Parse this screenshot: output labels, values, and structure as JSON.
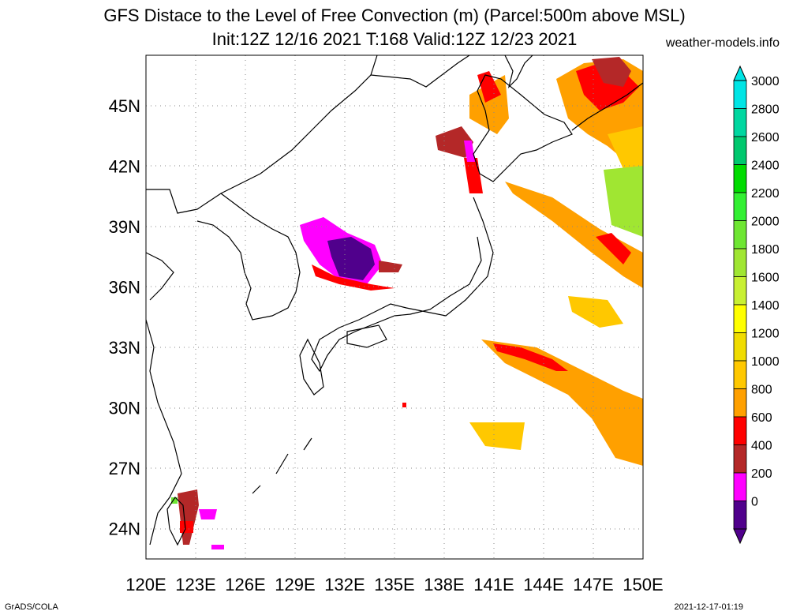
{
  "header": {
    "title_line1": "GFS Distace to the Level of Free Convection (m) (Parcel:500m above MSL)",
    "title_line2": "Init:12Z 12/16 2021 T:168 Valid:12Z 12/23 2021",
    "site": "weather-models.info"
  },
  "footer": {
    "left": "GrADS/COLA",
    "right": "2021-12-17-01:19"
  },
  "map": {
    "lon_labels": [
      "120E",
      "123E",
      "126E",
      "129E",
      "132E",
      "135E",
      "138E",
      "141E",
      "144E",
      "147E",
      "150E"
    ],
    "lat_labels": [
      "45N",
      "42N",
      "39N",
      "36N",
      "33N",
      "30N",
      "27N",
      "24N"
    ],
    "lon_range": [
      120,
      150
    ],
    "lat_range": [
      22.5,
      47.5
    ]
  },
  "colorbar": {
    "labels": [
      "3000",
      "2800",
      "2600",
      "2400",
      "2200",
      "2000",
      "1800",
      "1600",
      "1400",
      "1200",
      "1000",
      "800",
      "600",
      "400",
      "200",
      "0"
    ],
    "colors": [
      "#00e5e5",
      "#00d7a0",
      "#00c86e",
      "#00dc00",
      "#32f032",
      "#6ee632",
      "#a0e632",
      "#c8f032",
      "#ffff00",
      "#f0dc00",
      "#ffc800",
      "#ffa000",
      "#ff0000",
      "#b42828",
      "#ff00ff",
      "#50008c"
    ]
  }
}
